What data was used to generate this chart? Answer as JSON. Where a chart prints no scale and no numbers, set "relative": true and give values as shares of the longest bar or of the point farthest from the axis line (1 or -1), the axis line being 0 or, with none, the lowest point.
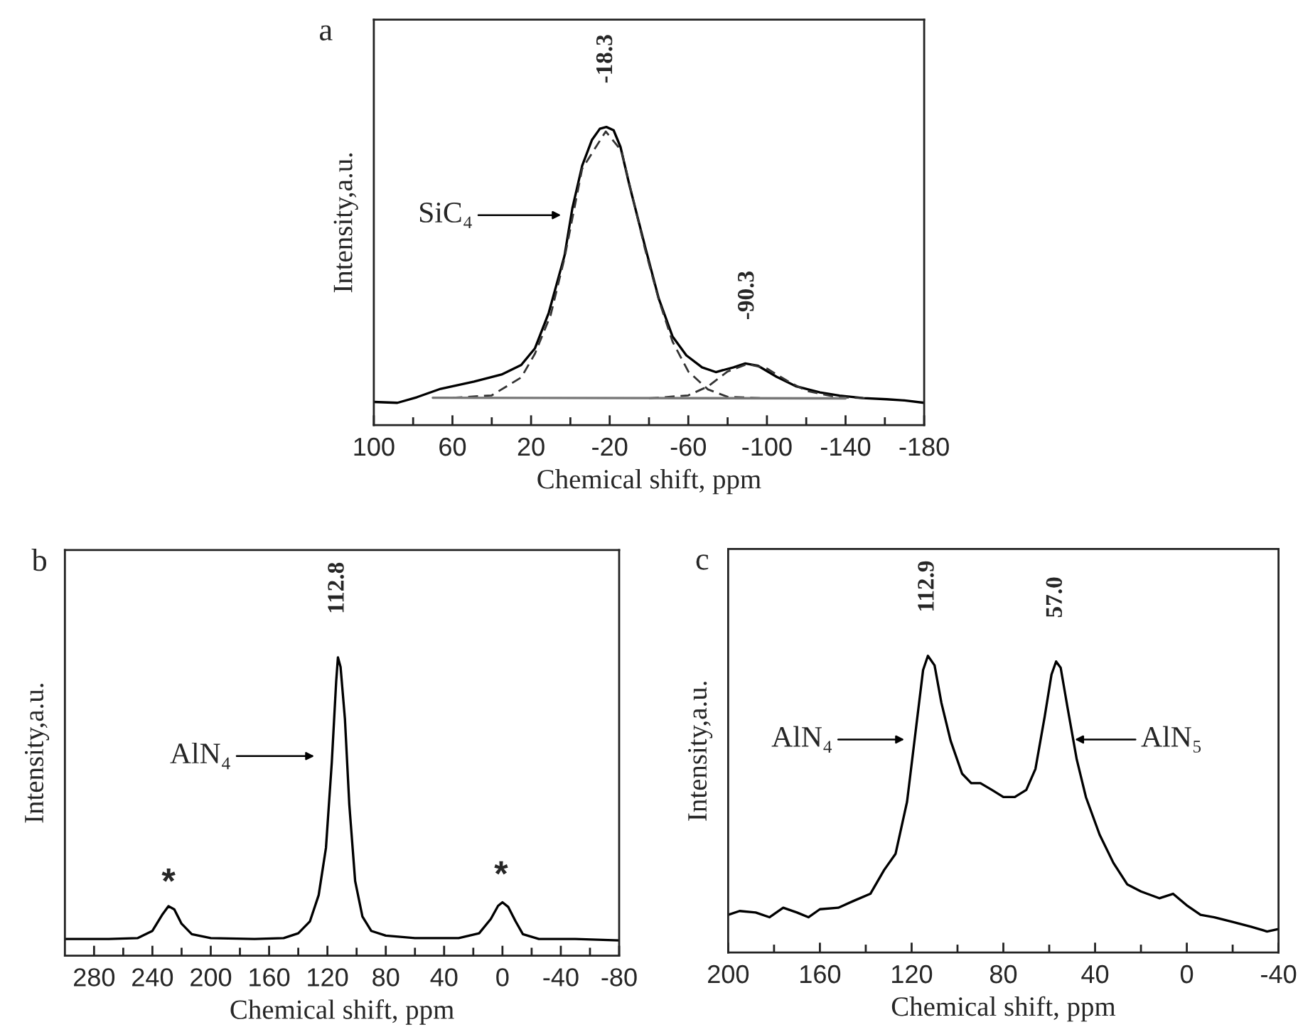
{
  "chart_data": [
    {
      "type": "line",
      "title": "a",
      "xlabel": "Chemical shift, ppm",
      "ylabel": "Intensity,a.u.",
      "relative": true,
      "legend": false,
      "grid": false,
      "tick_labels": "x",
      "xlim": [
        100,
        -180
      ],
      "xticks": [
        100,
        {
          "value": 80,
          "label": null
        },
        60,
        {
          "value": 40,
          "label": null
        },
        20,
        {
          "value": 0,
          "label": null
        },
        -20,
        {
          "value": -40,
          "label": null
        },
        -60,
        {
          "value": -80,
          "label": null
        },
        -100,
        {
          "value": -120,
          "label": null
        },
        -140,
        {
          "value": -160,
          "label": null
        },
        -180
      ],
      "series": [
        {
          "color": "#000000",
          "line_style": "solid",
          "x": [
            100,
            88,
            78,
            66,
            49,
            35,
            25,
            18,
            11,
            3,
            -1,
            -6,
            -11,
            -15,
            -18.3,
            -22,
            -25.5,
            -30,
            -38,
            -45,
            -52,
            -59,
            -67,
            -74,
            -83,
            -89,
            -95.5,
            -105,
            -115,
            -127,
            -137,
            -149,
            -161,
            -170,
            -180
          ],
          "values": [
            0.078,
            0.075,
            0.094,
            0.122,
            0.146,
            0.17,
            0.202,
            0.258,
            0.377,
            0.568,
            0.727,
            0.87,
            0.957,
            0.994,
            1.0,
            0.989,
            0.933,
            0.806,
            0.599,
            0.424,
            0.297,
            0.234,
            0.194,
            0.178,
            0.194,
            0.207,
            0.199,
            0.162,
            0.13,
            0.11,
            0.099,
            0.091,
            0.087,
            0.083,
            0.075
          ]
        },
        {
          "color": "#333333",
          "line_style": "dashed",
          "x": [
            60,
            40,
            25,
            18,
            10,
            3,
            -6,
            -18,
            -26,
            -38,
            -45,
            -52,
            -60,
            -70,
            -80,
            -100
          ],
          "values": [
            0.092,
            0.1,
            0.16,
            0.24,
            0.37,
            0.56,
            0.86,
            0.985,
            0.92,
            0.59,
            0.42,
            0.28,
            0.18,
            0.12,
            0.095,
            0.09
          ]
        },
        {
          "color": "#333333",
          "line_style": "dashed",
          "x": [
            -40,
            -60,
            -70,
            -80,
            -90,
            -100,
            -110,
            -120,
            -135,
            -150
          ],
          "values": [
            0.09,
            0.1,
            0.13,
            0.18,
            0.205,
            0.19,
            0.15,
            0.115,
            0.095,
            0.09
          ]
        },
        {
          "color": "#777777",
          "line_style": "solid",
          "x": [
            70,
            -140
          ],
          "values": [
            0.092,
            0.09
          ]
        }
      ],
      "annotations": [
        {
          "text": "-18.3",
          "x": -18.3,
          "y": 1.0
        },
        {
          "text": "-90.3",
          "x": -90.3,
          "y": 0.207
        },
        "SiC₄"
      ]
    },
    {
      "type": "line",
      "title": "b",
      "xlabel": "Chemical shift, ppm",
      "ylabel": "Intensity,a.u.",
      "relative": true,
      "legend": false,
      "grid": false,
      "tick_labels": "x",
      "xlim": [
        300,
        -80
      ],
      "xticks": [
        280,
        {
          "value": 260,
          "label": null
        },
        240,
        {
          "value": 220,
          "label": null
        },
        200,
        {
          "value": 180,
          "label": null
        },
        160,
        {
          "value": 140,
          "label": null
        },
        120,
        {
          "value": 100,
          "label": null
        },
        80,
        {
          "value": 60,
          "label": null
        },
        40,
        {
          "value": 20,
          "label": null
        },
        0,
        {
          "value": -20,
          "label": null
        },
        -40,
        {
          "value": -60,
          "label": null
        },
        -80
      ],
      "series": [
        {
          "color": "#000000",
          "line_style": "solid",
          "x": [
            300,
            270,
            250,
            240,
            233,
            229,
            225,
            220,
            213,
            200,
            170,
            150,
            140,
            132,
            126,
            121,
            117,
            114,
            112.8,
            111,
            108,
            105,
            101,
            96,
            90,
            80,
            60,
            30,
            16,
            8,
            3,
            0,
            -4,
            -9,
            -14,
            -25,
            -50,
            -80
          ],
          "values": [
            0.056,
            0.056,
            0.059,
            0.083,
            0.139,
            0.166,
            0.155,
            0.107,
            0.072,
            0.059,
            0.056,
            0.059,
            0.075,
            0.115,
            0.203,
            0.362,
            0.649,
            0.92,
            1.0,
            0.968,
            0.793,
            0.506,
            0.25,
            0.131,
            0.083,
            0.067,
            0.059,
            0.059,
            0.075,
            0.123,
            0.167,
            0.179,
            0.163,
            0.115,
            0.072,
            0.056,
            0.056,
            0.051
          ]
        }
      ],
      "annotations": [
        {
          "text": "112.8",
          "x": 112.8,
          "y": 1.0
        },
        "AlN₄",
        "*",
        "*"
      ]
    },
    {
      "type": "line",
      "title": "c",
      "xlabel": "Chemical shift, ppm",
      "ylabel": "Intensity,a.u.",
      "relative": true,
      "legend": false,
      "grid": false,
      "tick_labels": "x",
      "xlim": [
        200,
        -40
      ],
      "xticks": [
        200,
        {
          "value": 180,
          "label": null
        },
        160,
        {
          "value": 140,
          "label": null
        },
        120,
        {
          "value": 100,
          "label": null
        },
        80,
        {
          "value": 60,
          "label": null
        },
        40,
        {
          "value": 20,
          "label": null
        },
        0,
        {
          "value": -20,
          "label": null
        },
        -40
      ],
      "series": [
        {
          "color": "#000000",
          "line_style": "solid",
          "x": [
            200,
            195,
            188,
            182,
            176,
            170,
            165,
            160,
            152,
            145,
            138,
            132,
            127,
            122,
            118,
            115,
            112.9,
            110,
            107,
            103,
            98,
            94,
            90,
            85,
            80,
            75,
            70,
            66,
            62,
            59,
            57,
            55,
            52,
            48,
            44,
            38,
            32,
            26,
            20,
            12,
            6,
            0,
            -6,
            -12,
            -20,
            -28,
            -35,
            -40
          ],
          "values": [
            0.127,
            0.14,
            0.135,
            0.119,
            0.151,
            0.135,
            0.119,
            0.146,
            0.151,
            0.175,
            0.198,
            0.278,
            0.333,
            0.508,
            0.762,
            0.952,
            1.0,
            0.968,
            0.841,
            0.714,
            0.603,
            0.571,
            0.571,
            0.548,
            0.524,
            0.524,
            0.548,
            0.619,
            0.794,
            0.937,
            0.981,
            0.96,
            0.825,
            0.651,
            0.524,
            0.397,
            0.302,
            0.23,
            0.206,
            0.183,
            0.198,
            0.159,
            0.127,
            0.119,
            0.103,
            0.087,
            0.071,
            0.079
          ]
        }
      ],
      "annotations": [
        {
          "text": "112.9",
          "x": 112.9,
          "y": 1.0
        },
        {
          "text": "57.0",
          "x": 57.0,
          "y": 0.981
        },
        "AlN₄",
        "AlN₅"
      ]
    }
  ]
}
